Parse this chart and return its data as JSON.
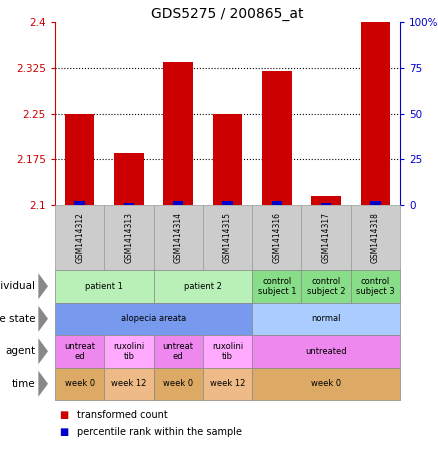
{
  "title": "GDS5275 / 200865_at",
  "samples": [
    "GSM1414312",
    "GSM1414313",
    "GSM1414314",
    "GSM1414315",
    "GSM1414316",
    "GSM1414317",
    "GSM1414318"
  ],
  "red_values": [
    2.25,
    2.185,
    2.335,
    2.25,
    2.32,
    2.115,
    2.4
  ],
  "blue_values": [
    2,
    1,
    2,
    2,
    2,
    1,
    2
  ],
  "y_min": 2.1,
  "y_max": 2.4,
  "y_ticks_left": [
    2.1,
    2.175,
    2.25,
    2.325,
    2.4
  ],
  "y_ticks_right": [
    0,
    25,
    50,
    75,
    100
  ],
  "individual_cells": [
    {
      "label": "patient 1",
      "cols": [
        0,
        1
      ],
      "color": "#b8f0b8"
    },
    {
      "label": "patient 2",
      "cols": [
        2,
        3
      ],
      "color": "#b8f0b8"
    },
    {
      "label": "control\nsubject 1",
      "cols": [
        4
      ],
      "color": "#88dd88"
    },
    {
      "label": "control\nsubject 2",
      "cols": [
        5
      ],
      "color": "#88dd88"
    },
    {
      "label": "control\nsubject 3",
      "cols": [
        6
      ],
      "color": "#88dd88"
    }
  ],
  "disease_cells": [
    {
      "label": "alopecia areata",
      "cols": [
        0,
        1,
        2,
        3
      ],
      "color": "#7799ee"
    },
    {
      "label": "normal",
      "cols": [
        4,
        5,
        6
      ],
      "color": "#aaccff"
    }
  ],
  "agent_cells": [
    {
      "label": "untreat\ned",
      "cols": [
        0
      ],
      "color": "#ee88ee"
    },
    {
      "label": "ruxolini\ntib",
      "cols": [
        1
      ],
      "color": "#ffaaff"
    },
    {
      "label": "untreat\ned",
      "cols": [
        2
      ],
      "color": "#ee88ee"
    },
    {
      "label": "ruxolini\ntib",
      "cols": [
        3
      ],
      "color": "#ffaaff"
    },
    {
      "label": "untreated",
      "cols": [
        4,
        5,
        6
      ],
      "color": "#ee88ee"
    }
  ],
  "time_cells": [
    {
      "label": "week 0",
      "cols": [
        0
      ],
      "color": "#ddaa66"
    },
    {
      "label": "week 12",
      "cols": [
        1
      ],
      "color": "#eebb88"
    },
    {
      "label": "week 0",
      "cols": [
        2
      ],
      "color": "#ddaa66"
    },
    {
      "label": "week 12",
      "cols": [
        3
      ],
      "color": "#eebb88"
    },
    {
      "label": "week 0",
      "cols": [
        4,
        5,
        6
      ],
      "color": "#ddaa66"
    }
  ],
  "bar_color": "#cc0000",
  "blue_bar_color": "#0000cc",
  "left_axis_color": "#cc0000",
  "right_axis_color": "#0000cc",
  "sample_box_color": "#cccccc",
  "grid_dotted_ticks": [
    2.175,
    2.25,
    2.325
  ]
}
